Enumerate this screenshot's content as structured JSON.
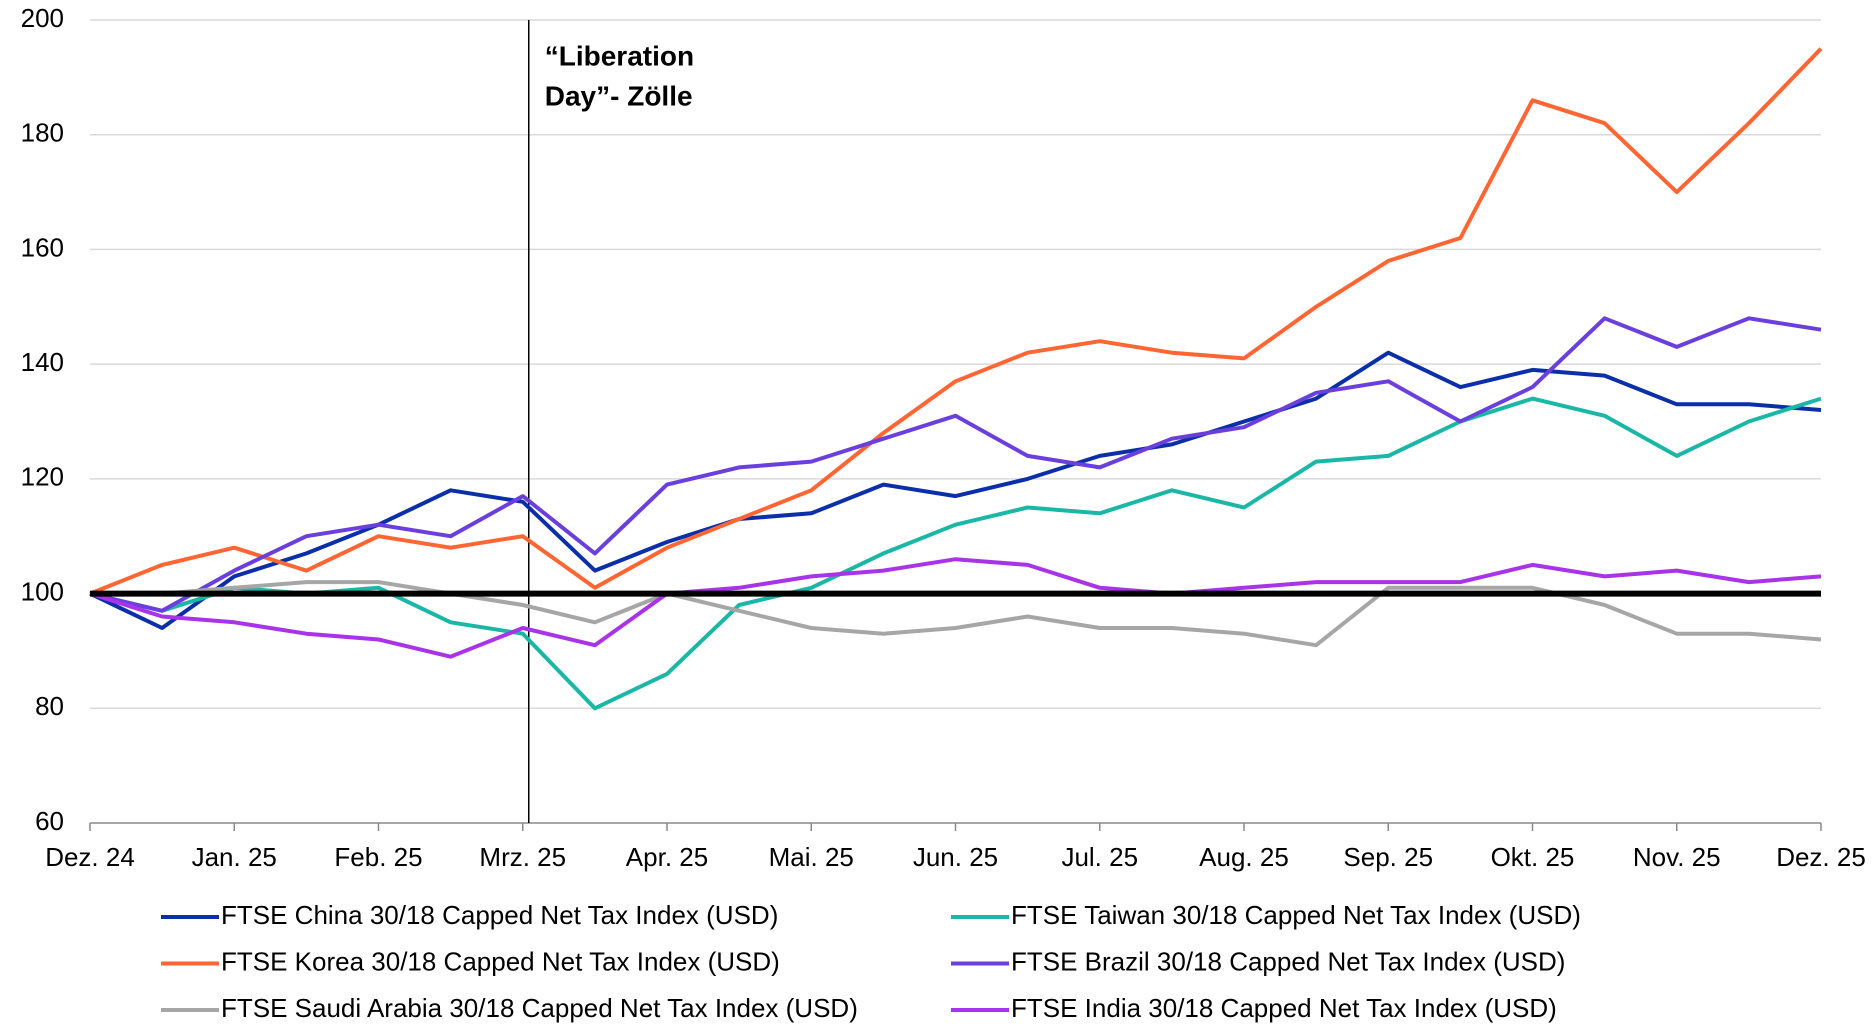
{
  "chart_data": {
    "type": "line",
    "categories": [
      "Dez. 24",
      null,
      "Jan. 25",
      null,
      "Feb. 25",
      null,
      "Mrz. 25",
      null,
      "Apr. 25",
      null,
      "Mai. 25",
      null,
      "Jun. 25",
      null,
      "Jul. 25",
      null,
      "Aug. 25",
      null,
      "Sep. 25",
      null,
      "Okt. 25",
      null,
      "Nov. 25",
      null,
      "Dez. 25"
    ],
    "series": [
      {
        "name": "FTSE China 30/18 Capped Net Tax Index (USD)",
        "color": "#0a2fa8",
        "values": [
          100,
          94,
          103,
          107,
          112,
          118,
          116,
          104,
          109,
          113,
          114,
          119,
          117,
          120,
          124,
          126,
          130,
          134,
          142,
          136,
          139,
          138,
          133,
          133,
          132
        ]
      },
      {
        "name": "FTSE Taiwan 30/18 Capped Net Tax Index (USD)",
        "color": "#1ab7a6",
        "values": [
          100,
          97,
          101,
          100,
          101,
          95,
          93,
          80,
          86,
          98,
          101,
          107,
          112,
          115,
          114,
          118,
          115,
          123,
          124,
          130,
          134,
          131,
          124,
          130,
          134
        ]
      },
      {
        "name": "FTSE Korea 30/18 Capped Net Tax Index (USD)",
        "color": "#ff6633",
        "values": [
          100,
          105,
          108,
          104,
          110,
          108,
          110,
          101,
          108,
          113,
          118,
          128,
          137,
          142,
          144,
          142,
          141,
          150,
          158,
          162,
          186,
          182,
          170,
          182,
          195
        ]
      },
      {
        "name": "FTSE Brazil 30/18 Capped Net Tax Index (USD)",
        "color": "#6a3fdc",
        "values": [
          100,
          97,
          104,
          110,
          112,
          110,
          117,
          107,
          119,
          122,
          123,
          127,
          131,
          124,
          122,
          127,
          129,
          135,
          137,
          130,
          136,
          148,
          143,
          148,
          146
        ]
      },
      {
        "name": "FTSE Saudi Arabia 30/18 Capped Net Tax Index (USD)",
        "color": "#a6a6a6",
        "values": [
          100,
          100,
          101,
          102,
          102,
          100,
          98,
          95,
          100,
          97,
          94,
          93,
          94,
          96,
          94,
          94,
          93,
          91,
          101,
          101,
          101,
          98,
          93,
          93,
          92
        ]
      },
      {
        "name": "FTSE India 30/18 Capped Net Tax Index (USD)",
        "color": "#a933e8",
        "values": [
          100,
          96,
          95,
          93,
          92,
          89,
          94,
          91,
          100,
          101,
          103,
          104,
          106,
          105,
          101,
          100,
          101,
          102,
          102,
          102,
          105,
          103,
          104,
          102,
          103
        ]
      }
    ],
    "ylim": [
      60,
      200
    ],
    "yticks": [
      60,
      80,
      100,
      120,
      140,
      160,
      180,
      200
    ],
    "grid": true,
    "reference_line": 100,
    "annotation": {
      "lines": [
        "“Liberation",
        "Day”- Zölle"
      ],
      "x": "Mrz. 25"
    },
    "legend": "bottom"
  }
}
